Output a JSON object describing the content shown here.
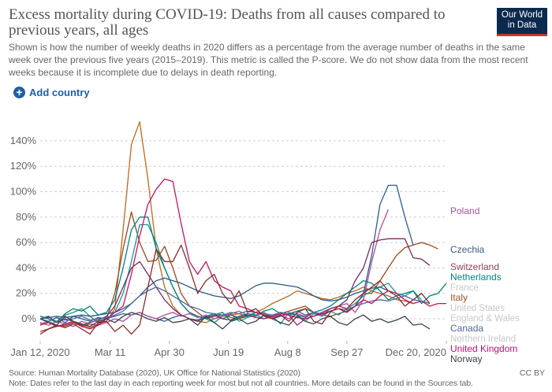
{
  "header": {
    "title": "Excess mortality during COVID-19: Deaths from all causes compared to previous years, all ages",
    "subtitle": "Shown is how the number of weekly deaths in 2020 differs as a percentage from the average number of deaths in the same week over the previous five years (2015–2019). This metric is called the P-score. We do not show data from the most recent weeks because it is incomplete due to delays in death reporting.",
    "logo": "Our World in Data",
    "add_country": "Add country"
  },
  "footer": {
    "source": "Source: Human Mortality Database (2020), UK Office for National Statistics (2020)",
    "note": "Note: Dates refer to the last day in each reporting week for most but not all countries. More details can be found in the Sources tab.",
    "license": "CC BY"
  },
  "chart_data": {
    "type": "line",
    "title": "Excess mortality during COVID-19: Deaths from all causes compared to previous years, all ages",
    "xlabel": "",
    "ylabel": "",
    "ylim": [
      -20,
      150
    ],
    "yticks": [
      0,
      20,
      40,
      60,
      80,
      100,
      120,
      140
    ],
    "ytick_labels": [
      "0%",
      "20%",
      "40%",
      "60%",
      "80%",
      "100%",
      "120%",
      "140%"
    ],
    "xticks": [
      "2020-01-12",
      "2020-03-11",
      "2020-04-30",
      "2020-06-19",
      "2020-08-08",
      "2020-09-27",
      "2020-12-20"
    ],
    "xtick_labels": [
      "Jan 12, 2020",
      "Mar 11",
      "Apr 30",
      "Jun 19",
      "Aug 8",
      "Sep 27",
      "Dec 20, 2020"
    ],
    "grid": "horizontal dashed",
    "legend": "right, line-end labels",
    "faded_labels": [
      "France",
      "United States",
      "England & Wales",
      "Northern Ireland"
    ],
    "x": [
      "2020-01-12",
      "2020-01-19",
      "2020-01-26",
      "2020-02-02",
      "2020-02-09",
      "2020-02-16",
      "2020-02-23",
      "2020-03-01",
      "2020-03-08",
      "2020-03-15",
      "2020-03-22",
      "2020-03-29",
      "2020-04-05",
      "2020-04-12",
      "2020-04-19",
      "2020-04-26",
      "2020-05-03",
      "2020-05-10",
      "2020-05-17",
      "2020-05-24",
      "2020-05-31",
      "2020-06-07",
      "2020-06-14",
      "2020-06-21",
      "2020-06-28",
      "2020-07-05",
      "2020-07-12",
      "2020-07-19",
      "2020-07-26",
      "2020-08-02",
      "2020-08-09",
      "2020-08-16",
      "2020-08-23",
      "2020-08-30",
      "2020-09-06",
      "2020-09-13",
      "2020-09-20",
      "2020-09-27",
      "2020-10-04",
      "2020-10-11",
      "2020-10-18",
      "2020-10-25",
      "2020-11-01",
      "2020-11-08",
      "2020-11-15",
      "2020-11-22",
      "2020-11-29",
      "2020-12-06",
      "2020-12-13",
      "2020-12-20"
    ],
    "series": [
      {
        "color": "#c0691a",
        "values": [
          -4,
          -2,
          -5,
          -6,
          -3,
          -5,
          -7,
          -4,
          -2,
          8,
          70,
          137,
          155,
          110,
          55,
          25,
          10,
          3,
          0,
          -2,
          -3,
          0,
          2,
          3,
          4,
          2,
          5,
          8,
          12,
          15,
          18,
          22,
          20,
          18,
          16,
          15,
          17,
          20,
          22,
          25,
          22,
          20,
          18,
          15,
          14,
          12,
          null,
          null,
          null,
          null
        ]
      },
      {
        "name": "Italy",
        "color": "#9a4a1c",
        "values": [
          -10,
          -8,
          -6,
          -5,
          -3,
          -6,
          -4,
          -5,
          0,
          20,
          55,
          84,
          60,
          45,
          46,
          57,
          40,
          20,
          10,
          5,
          0,
          2,
          3,
          1,
          0,
          2,
          5,
          3,
          2,
          4,
          6,
          8,
          10,
          5,
          3,
          2,
          4,
          6,
          10,
          20,
          20,
          30,
          40,
          50,
          56,
          58,
          60,
          58,
          55,
          null
        ]
      },
      {
        "color": "#1a9a8a",
        "values": [
          2,
          0,
          -2,
          3,
          5,
          8,
          2,
          -3,
          0,
          5,
          20,
          45,
          74,
          74,
          60,
          40,
          25,
          12,
          5,
          2,
          0,
          -3,
          2,
          4,
          -2,
          1,
          3,
          0,
          2,
          -4,
          5,
          3,
          -2,
          4,
          2,
          6,
          3,
          8,
          12,
          18,
          22,
          25,
          28,
          20,
          18,
          22,
          15,
          null,
          null,
          null
        ]
      },
      {
        "name": "Czechia",
        "color": "#2c5f8e",
        "values": [
          0,
          -2,
          1,
          -3,
          2,
          0,
          -2,
          1,
          0,
          2,
          4,
          3,
          5,
          2,
          0,
          -2,
          1,
          3,
          0,
          -1,
          2,
          4,
          0,
          3,
          1,
          2,
          5,
          3,
          0,
          2,
          4,
          3,
          1,
          5,
          3,
          6,
          8,
          5,
          10,
          20,
          50,
          90,
          105,
          105,
          80,
          58,
          null,
          null,
          null,
          null
        ]
      },
      {
        "name": "Poland",
        "color": "#b04ea0",
        "values": [
          -3,
          -5,
          -2,
          -4,
          -6,
          -2,
          -4,
          -5,
          -3,
          0,
          -2,
          3,
          5,
          2,
          0,
          3,
          5,
          2,
          4,
          1,
          3,
          0,
          2,
          4,
          6,
          3,
          2,
          5,
          1,
          3,
          0,
          4,
          2,
          5,
          3,
          8,
          10,
          12,
          5,
          15,
          45,
          70,
          86,
          null,
          null,
          null,
          null,
          null,
          null,
          null
        ]
      },
      {
        "name": "Switzerland",
        "color": "#7a2a5a",
        "values": [
          0,
          2,
          -3,
          0,
          -2,
          -5,
          -3,
          -1,
          2,
          10,
          25,
          40,
          45,
          35,
          25,
          15,
          8,
          3,
          0,
          -2,
          1,
          3,
          0,
          -1,
          2,
          3,
          1,
          0,
          2,
          4,
          3,
          1,
          0,
          2,
          5,
          8,
          10,
          15,
          30,
          40,
          60,
          62,
          63,
          63,
          63,
          48,
          47,
          42,
          null,
          null
        ]
      },
      {
        "name": "Netherlands",
        "color": "#00847e",
        "values": [
          2,
          0,
          -3,
          4,
          8,
          6,
          10,
          3,
          5,
          15,
          40,
          70,
          80,
          80,
          55,
          40,
          25,
          12,
          5,
          2,
          0,
          3,
          5,
          -2,
          2,
          4,
          3,
          6,
          8,
          4,
          3,
          6,
          8,
          5,
          7,
          10,
          15,
          20,
          25,
          30,
          28,
          22,
          15,
          18,
          20,
          22,
          12,
          18,
          20,
          28
        ]
      },
      {
        "name": "United States",
        "color": "#2a5a88",
        "values": [
          0,
          1,
          2,
          1,
          2,
          3,
          2,
          3,
          4,
          5,
          8,
          12,
          18,
          25,
          30,
          32,
          30,
          28,
          25,
          22,
          20,
          18,
          17,
          16,
          18,
          22,
          26,
          28,
          28,
          27,
          26,
          25,
          22,
          18,
          15,
          14,
          15,
          17,
          20,
          22,
          24,
          25,
          22,
          null,
          null,
          null,
          null,
          null,
          null,
          null
        ]
      },
      {
        "name": "Canada",
        "color": "#4c6a9c",
        "values": [
          0,
          -2,
          1,
          -1,
          0,
          2,
          -1,
          0,
          1,
          3,
          6,
          12,
          18,
          22,
          25,
          22,
          18,
          14,
          10,
          8,
          5,
          4,
          3,
          5,
          4,
          6,
          5,
          4,
          3,
          5,
          4,
          6,
          3,
          5,
          4,
          6,
          8,
          7,
          10,
          12,
          14,
          15,
          14,
          16,
          18,
          15,
          14,
          12,
          null,
          null
        ]
      },
      {
        "name": "United Kingdom",
        "color": "#c5126b",
        "values": [
          -5,
          -3,
          -6,
          -4,
          -2,
          -6,
          -8,
          -5,
          0,
          5,
          10,
          35,
          65,
          90,
          102,
          110,
          108,
          75,
          45,
          35,
          45,
          30,
          25,
          22,
          10,
          8,
          5,
          3,
          2,
          4,
          3,
          -5,
          0,
          2,
          4,
          6,
          8,
          5,
          10,
          15,
          12,
          18,
          22,
          20,
          15,
          12,
          14,
          10,
          12,
          12
        ]
      },
      {
        "name": "Norway",
        "color": "#38464f",
        "values": [
          0,
          -3,
          -5,
          2,
          -2,
          -4,
          -6,
          -2,
          0,
          -3,
          2,
          5,
          3,
          0,
          -2,
          1,
          -3,
          -2,
          0,
          -5,
          2,
          -3,
          -8,
          -2,
          0,
          -4,
          -2,
          3,
          0,
          -3,
          -5,
          2,
          -2,
          -4,
          0,
          2,
          -3,
          -5,
          0,
          3,
          -2,
          0,
          -3,
          -1,
          2,
          -5,
          -4,
          -8,
          null,
          null
        ]
      },
      {
        "color": "#8a2b2b",
        "values": [
          -12,
          -8,
          -5,
          -7,
          -4,
          -8,
          -12,
          -3,
          -2,
          -10,
          -5,
          -12,
          -5,
          25,
          55,
          45,
          45,
          58,
          40,
          20,
          30,
          35,
          20,
          12,
          22,
          5,
          8,
          2,
          0,
          3,
          -2,
          5,
          8,
          -2,
          -4,
          5,
          10,
          8,
          15,
          20,
          25,
          30,
          22,
          18,
          10,
          15,
          20,
          12,
          null,
          null
        ]
      }
    ],
    "labels": [
      "Poland",
      "Czechia",
      "Switzerland",
      "Netherlands",
      "France",
      "Italy",
      "United States",
      "England & Wales",
      "Canada",
      "Northern Ireland",
      "United Kingdom",
      "Norway"
    ],
    "label_colors": [
      "#a2559c",
      "#3c5a80",
      "#883f5f",
      "#00847e",
      "#c8c8c8",
      "#9a5129",
      "#c8c8c8",
      "#c8c8c8",
      "#4c6a9c",
      "#c8c8c8",
      "#c5126b",
      "#38464f"
    ]
  }
}
